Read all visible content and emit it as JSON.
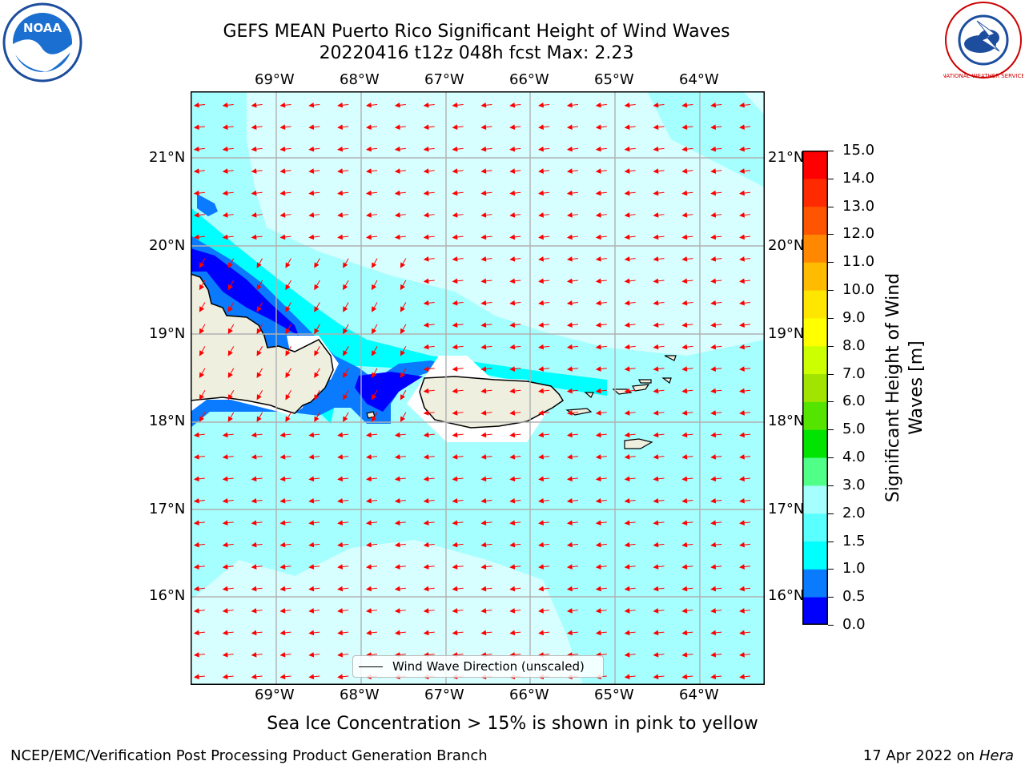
{
  "title": {
    "line1": "GEFS MEAN Puerto Rico Significant Height of Wind Waves",
    "line2": "20220416 t12z 048h fcst   Max: 2.23"
  },
  "footnote": "Sea Ice Concentration > 15% is shown in pink to yellow",
  "credit_left": "NCEP/EMC/Verification Post Processing Product Generation Branch",
  "credit_right_date": "17 Apr 2022 on",
  "credit_right_host": "Hera",
  "legend": {
    "label": "Wind Wave Direction (unscaled)"
  },
  "logos": {
    "left": {
      "icon": "noaa-logo-icon",
      "text": "NOAA"
    },
    "right": {
      "icon": "nws-logo-icon",
      "text": "NATIONAL WEATHER SERVICE"
    }
  },
  "map": {
    "lon_labels": [
      "69°W",
      "68°W",
      "67°W",
      "66°W",
      "65°W",
      "64°W"
    ],
    "lat_labels": [
      "21°N",
      "20°N",
      "19°N",
      "18°N",
      "17°N",
      "16°N"
    ],
    "colors": {
      "ocean_main": "#a6ffff",
      "ocean_light": "#d7ffff",
      "band_1_0": "#00ffff",
      "band_0_5": "#0a7aff",
      "band_0_0": "#0000ff",
      "land": "#efefdf",
      "arrows": "#ff0000",
      "grid": "#b0b0b0"
    }
  },
  "colorbar": {
    "label": "Significant Height of Wind Waves [m]",
    "ticks": [
      "15.0",
      "14.0",
      "13.0",
      "12.0",
      "11.0",
      "10.0",
      "9.0",
      "8.0",
      "7.0",
      "6.0",
      "5.0",
      "4.0",
      "3.0",
      "2.0",
      "1.5",
      "1.0",
      "0.5",
      "0.0"
    ],
    "colors": [
      "#0000ff",
      "#0a7aff",
      "#00ffff",
      "#5affff",
      "#a6ffff",
      "#4fff87",
      "#00e400",
      "#55e400",
      "#a0e400",
      "#ccff00",
      "#ffff00",
      "#ffe600",
      "#ffbb00",
      "#ff8800",
      "#ff5500",
      "#ff2a00",
      "#ff0000"
    ]
  }
}
